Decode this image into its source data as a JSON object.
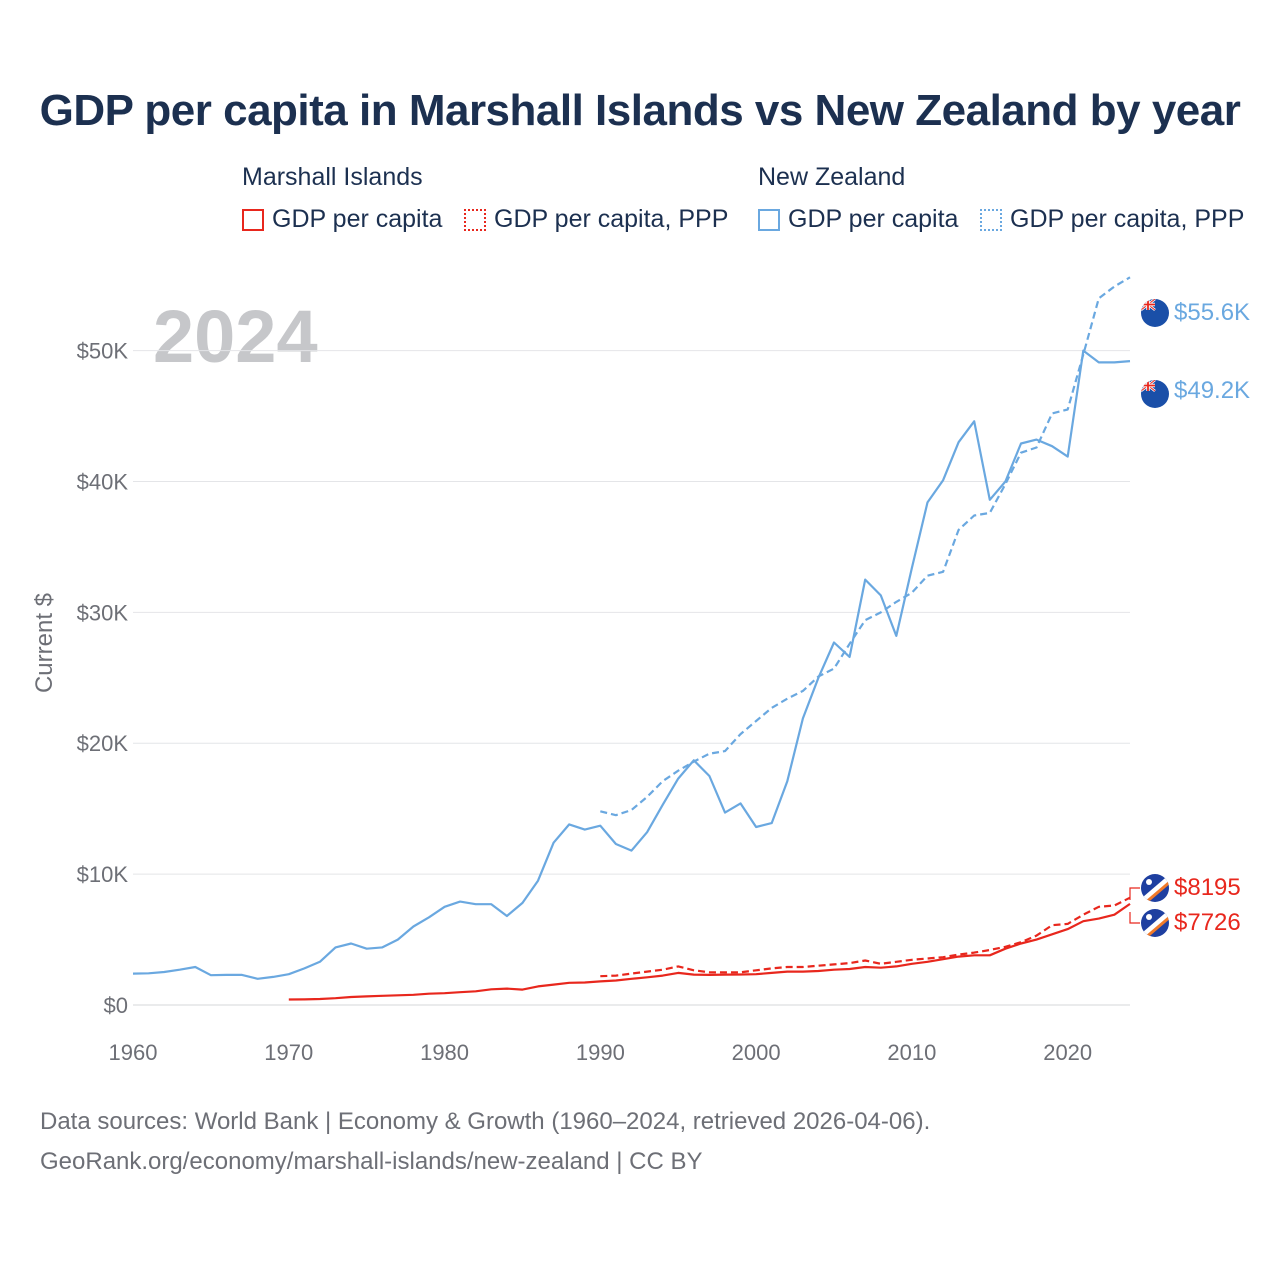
{
  "title": "GDP per capita in Marshall Islands vs New Zealand by year",
  "legend": {
    "groups": [
      {
        "label": "Marshall Islands",
        "items": [
          {
            "label": "GDP per capita",
            "style": "solid",
            "color": "#e8271d"
          },
          {
            "label": "GDP per capita, PPP",
            "style": "dotted",
            "color": "#e8271d"
          }
        ]
      },
      {
        "label": "New Zealand",
        "items": [
          {
            "label": "GDP per capita",
            "style": "solid",
            "color": "#6aa8e0"
          },
          {
            "label": "GDP per capita, PPP",
            "style": "dotted",
            "color": "#6aa8e0"
          }
        ]
      }
    ]
  },
  "year_watermark": "2024",
  "end_labels": {
    "nz_ppp": "$55.6K",
    "nz_gdp": "$49.2K",
    "mh_ppp": "$8195",
    "mh_gdp": "$7726"
  },
  "footer": {
    "line1": "Data sources: World Bank | Economy & Growth (1960–2024, retrieved 2026-04-06).",
    "line2": "GeoRank.org/economy/marshall-islands/new-zealand | CC BY"
  },
  "icons": {
    "nz_flag": "new-zealand-flag-icon",
    "mh_flag": "marshall-islands-flag-icon"
  },
  "chart_data": {
    "type": "line",
    "title": "GDP per capita in Marshall Islands vs New Zealand by year",
    "xlabel": "",
    "ylabel": "Current $",
    "xlim": [
      1960,
      2024
    ],
    "ylim": [
      0,
      57000
    ],
    "x_ticks": [
      1960,
      1970,
      1980,
      1990,
      2000,
      2010,
      2020
    ],
    "x_tick_labels": [
      "1960",
      "1970",
      "1980",
      "1990",
      "2000",
      "2010",
      "2020"
    ],
    "y_ticks": [
      0,
      10000,
      20000,
      30000,
      40000,
      50000
    ],
    "y_tick_labels": [
      "$0",
      "$10K",
      "$20K",
      "$30K",
      "$40K",
      "$50K"
    ],
    "grid": true,
    "series": [
      {
        "name": "New Zealand GDP per capita",
        "color": "#6aa8e0",
        "dash": "solid",
        "x": [
          1960,
          1961,
          1962,
          1963,
          1964,
          1965,
          1966,
          1967,
          1968,
          1969,
          1970,
          1971,
          1972,
          1973,
          1974,
          1975,
          1976,
          1977,
          1978,
          1979,
          1980,
          1981,
          1982,
          1983,
          1984,
          1985,
          1986,
          1987,
          1988,
          1989,
          1990,
          1991,
          1992,
          1993,
          1994,
          1995,
          1996,
          1997,
          1998,
          1999,
          2000,
          2001,
          2002,
          2003,
          2004,
          2005,
          2006,
          2007,
          2008,
          2009,
          2010,
          2011,
          2012,
          2013,
          2014,
          2015,
          2016,
          2017,
          2018,
          2019,
          2020,
          2021,
          2022,
          2023,
          2024
        ],
        "values": [
          2400,
          2420,
          2520,
          2700,
          2900,
          2280,
          2300,
          2300,
          2000,
          2150,
          2350,
          2800,
          3300,
          4400,
          4700,
          4300,
          4400,
          5000,
          6000,
          6700,
          7500,
          7900,
          7700,
          7700,
          6800,
          7800,
          9500,
          12400,
          13800,
          13400,
          13700,
          12300,
          11800,
          13200,
          15300,
          17300,
          18700,
          17500,
          14700,
          15400,
          13600,
          13900,
          17100,
          21900,
          25000,
          27700,
          26600,
          32500,
          31300,
          28200,
          33400,
          38400,
          40100,
          43000,
          44600,
          38600,
          40000,
          42900,
          43200,
          42700,
          41900,
          50000,
          49100,
          49100,
          49200
        ]
      },
      {
        "name": "New Zealand GDP per capita, PPP",
        "color": "#6aa8e0",
        "dash": "dashed",
        "x": [
          1990,
          1991,
          1992,
          1993,
          1994,
          1995,
          1996,
          1997,
          1998,
          1999,
          2000,
          2001,
          2002,
          2003,
          2004,
          2005,
          2006,
          2007,
          2008,
          2009,
          2010,
          2011,
          2012,
          2013,
          2014,
          2015,
          2016,
          2017,
          2018,
          2019,
          2020,
          2021,
          2022,
          2023,
          2024
        ],
        "values": [
          14800,
          14500,
          14900,
          15900,
          17100,
          17900,
          18600,
          19200,
          19400,
          20700,
          21700,
          22700,
          23400,
          24000,
          25100,
          25700,
          27600,
          29400,
          30000,
          30800,
          31500,
          32800,
          33100,
          36300,
          37400,
          37600,
          39800,
          42200,
          42600,
          45200,
          45500,
          49700,
          54000,
          54900,
          55600
        ]
      },
      {
        "name": "Marshall Islands GDP per capita",
        "color": "#e8271d",
        "dash": "solid",
        "x": [
          1970,
          1971,
          1972,
          1973,
          1974,
          1975,
          1976,
          1977,
          1978,
          1979,
          1980,
          1981,
          1982,
          1983,
          1984,
          1985,
          1986,
          1987,
          1988,
          1989,
          1990,
          1991,
          1992,
          1993,
          1994,
          1995,
          1996,
          1997,
          1998,
          1999,
          2000,
          2001,
          2002,
          2003,
          2004,
          2005,
          2006,
          2007,
          2008,
          2009,
          2010,
          2011,
          2012,
          2013,
          2014,
          2015,
          2016,
          2017,
          2018,
          2019,
          2020,
          2021,
          2022,
          2023,
          2024
        ],
        "values": [
          420,
          430,
          460,
          520,
          610,
          660,
          700,
          740,
          780,
          860,
          900,
          980,
          1050,
          1200,
          1250,
          1180,
          1420,
          1560,
          1700,
          1720,
          1800,
          1870,
          2000,
          2120,
          2250,
          2450,
          2320,
          2300,
          2320,
          2330,
          2350,
          2450,
          2550,
          2550,
          2600,
          2700,
          2750,
          2900,
          2850,
          2950,
          3150,
          3300,
          3500,
          3700,
          3800,
          3800,
          4300,
          4700,
          5000,
          5400,
          5800,
          6400,
          6600,
          6900,
          7726
        ]
      },
      {
        "name": "Marshall Islands GDP per capita, PPP",
        "color": "#e8271d",
        "dash": "dashed",
        "x": [
          1990,
          1991,
          1992,
          1993,
          1994,
          1995,
          1996,
          1997,
          1998,
          1999,
          2000,
          2001,
          2002,
          2003,
          2004,
          2005,
          2006,
          2007,
          2008,
          2009,
          2010,
          2011,
          2012,
          2013,
          2014,
          2015,
          2016,
          2017,
          2018,
          2019,
          2020,
          2021,
          2022,
          2023,
          2024
        ],
        "values": [
          2200,
          2250,
          2400,
          2550,
          2700,
          2950,
          2650,
          2500,
          2500,
          2500,
          2650,
          2800,
          2900,
          2900,
          3000,
          3100,
          3200,
          3400,
          3150,
          3300,
          3450,
          3550,
          3650,
          3850,
          4000,
          4200,
          4450,
          4800,
          5300,
          6100,
          6200,
          6900,
          7500,
          7600,
          8195
        ]
      }
    ]
  }
}
